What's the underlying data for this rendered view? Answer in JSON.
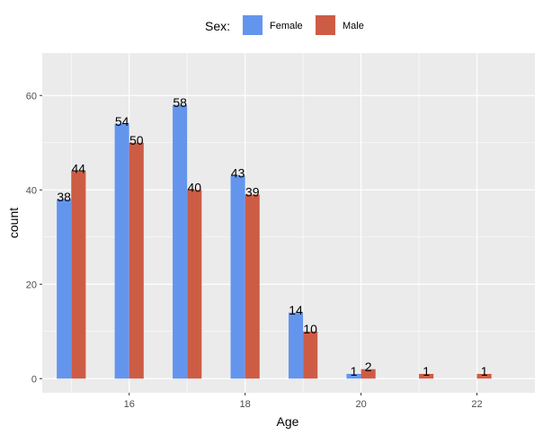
{
  "chart_data": {
    "type": "bar",
    "x": [
      15,
      16,
      17,
      18,
      19,
      20,
      21,
      22
    ],
    "series": [
      {
        "name": "Female",
        "color": "#6495ED",
        "values": [
          38,
          54,
          58,
          43,
          14,
          1,
          null,
          null
        ]
      },
      {
        "name": "Male",
        "color": "#CD5C45",
        "values": [
          44,
          50,
          40,
          39,
          10,
          2,
          1,
          1
        ]
      }
    ],
    "xlabel": "Age",
    "ylabel": "count",
    "xlim": [
      14.5,
      23.0
    ],
    "ylim": [
      -3,
      69
    ],
    "xticks": [
      16,
      18,
      20,
      22
    ],
    "yticks": [
      0,
      20,
      40,
      60
    ],
    "legend": {
      "title": "Sex:",
      "position": "top"
    },
    "grid": true,
    "panel_background": "#EBEBEB"
  }
}
